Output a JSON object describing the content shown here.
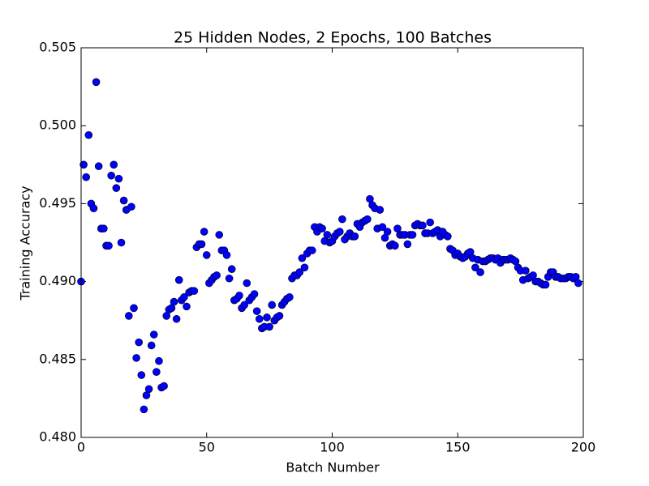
{
  "chart_data": {
    "type": "scatter",
    "title": "25 Hidden Nodes, 2 Epochs, 100 Batches",
    "x_label": "Batch Number",
    "y_label": "Training Accuracy",
    "xlim": [
      0,
      200
    ],
    "ylim": [
      0.48,
      0.505
    ],
    "xticks": [
      0,
      50,
      100,
      150,
      200
    ],
    "yticks": [
      {
        "value": 0.48,
        "label": "0.480"
      },
      {
        "value": 0.485,
        "label": "0.485"
      },
      {
        "value": 0.49,
        "label": "0.490"
      },
      {
        "value": 0.495,
        "label": "0.495"
      },
      {
        "value": 0.5,
        "label": "0.500"
      },
      {
        "value": 0.505,
        "label": "0.505"
      }
    ],
    "grid": false,
    "series": [
      {
        "color": "#0000ff",
        "x": [
          0,
          1,
          2,
          3,
          4,
          5,
          6,
          7,
          8,
          9,
          10,
          11,
          12,
          13,
          14,
          15,
          16,
          17,
          18,
          19,
          20,
          21,
          22,
          23,
          24,
          25,
          26,
          27,
          28,
          29,
          30,
          31,
          32,
          33,
          34,
          35,
          36,
          37,
          38,
          39,
          40,
          41,
          42,
          43,
          44,
          45,
          46,
          47,
          48,
          49,
          50,
          51,
          52,
          53,
          54,
          55,
          56,
          57,
          58,
          59,
          60,
          61,
          62,
          63,
          64,
          65,
          66,
          67,
          68,
          69,
          70,
          71,
          72,
          73,
          74,
          75,
          76,
          77,
          78,
          79,
          80,
          81,
          82,
          83,
          84,
          85,
          86,
          87,
          88,
          89,
          90,
          91,
          92,
          93,
          94,
          95,
          96,
          97,
          98,
          99,
          100,
          101,
          102,
          103,
          104,
          105,
          106,
          107,
          108,
          109,
          110,
          111,
          112,
          113,
          114,
          115,
          116,
          117,
          118,
          119,
          120,
          121,
          122,
          123,
          124,
          125,
          126,
          127,
          128,
          129,
          130,
          131,
          132,
          133,
          134,
          135,
          136,
          137,
          138,
          139,
          140,
          141,
          142,
          143,
          144,
          145,
          146,
          147,
          148,
          149,
          150,
          151,
          152,
          153,
          154,
          155,
          156,
          157,
          158,
          159,
          160,
          161,
          162,
          163,
          164,
          165,
          166,
          167,
          168,
          169,
          170,
          171,
          172,
          173,
          174,
          175,
          176,
          177,
          178,
          179,
          180,
          181,
          182,
          183,
          184,
          185,
          186,
          187,
          188,
          189,
          190,
          191,
          192,
          193,
          194,
          195,
          196,
          197,
          198
        ],
        "values": [
          0.49,
          0.4975,
          0.4967,
          0.4994,
          0.495,
          0.4947,
          0.5028,
          0.4974,
          0.4934,
          0.4934,
          0.4923,
          0.4923,
          0.4968,
          0.4975,
          0.496,
          0.4966,
          0.4925,
          0.4952,
          0.4946,
          0.4878,
          0.4948,
          0.4883,
          0.4851,
          0.4861,
          0.484,
          0.4818,
          0.4827,
          0.4831,
          0.4859,
          0.4866,
          0.4842,
          0.4849,
          0.4832,
          0.4833,
          0.4878,
          0.4882,
          0.4883,
          0.4887,
          0.4876,
          0.4901,
          0.4888,
          0.489,
          0.4884,
          0.4893,
          0.4894,
          0.4894,
          0.4922,
          0.4924,
          0.4924,
          0.4932,
          0.4917,
          0.4899,
          0.4901,
          0.4903,
          0.4904,
          0.493,
          0.492,
          0.492,
          0.4917,
          0.4902,
          0.4908,
          0.4888,
          0.4889,
          0.4891,
          0.4883,
          0.4885,
          0.4899,
          0.4888,
          0.489,
          0.4892,
          0.4881,
          0.4876,
          0.487,
          0.4871,
          0.4877,
          0.4871,
          0.4885,
          0.4875,
          0.4877,
          0.4878,
          0.4885,
          0.4887,
          0.4889,
          0.489,
          0.4902,
          0.4904,
          0.4904,
          0.4906,
          0.4915,
          0.4909,
          0.4918,
          0.492,
          0.492,
          0.4935,
          0.4932,
          0.4935,
          0.4934,
          0.4926,
          0.493,
          0.4925,
          0.4926,
          0.4929,
          0.4931,
          0.4932,
          0.494,
          0.4927,
          0.4929,
          0.4931,
          0.4929,
          0.4929,
          0.4937,
          0.4935,
          0.4938,
          0.4939,
          0.494,
          0.4953,
          0.4949,
          0.4947,
          0.4934,
          0.4946,
          0.4935,
          0.4928,
          0.4932,
          0.4923,
          0.4924,
          0.4923,
          0.4934,
          0.493,
          0.493,
          0.493,
          0.4924,
          0.493,
          0.493,
          0.4936,
          0.4937,
          0.4936,
          0.4936,
          0.4931,
          0.4931,
          0.4938,
          0.4931,
          0.4932,
          0.4933,
          0.4929,
          0.4932,
          0.493,
          0.4929,
          0.4921,
          0.492,
          0.4917,
          0.4918,
          0.4916,
          0.4915,
          0.4916,
          0.4918,
          0.4919,
          0.4915,
          0.4909,
          0.4914,
          0.4906,
          0.4913,
          0.4913,
          0.4914,
          0.4915,
          0.4915,
          0.4914,
          0.4915,
          0.4912,
          0.4914,
          0.4914,
          0.4914,
          0.4915,
          0.4914,
          0.4913,
          0.4909,
          0.4907,
          0.4901,
          0.4907,
          0.4902,
          0.4903,
          0.4904,
          0.49,
          0.49,
          0.4899,
          0.4898,
          0.4898,
          0.4903,
          0.4906,
          0.4906,
          0.4903,
          0.4903,
          0.4902,
          0.4902,
          0.4902,
          0.4903,
          0.4903,
          0.4902,
          0.4903,
          0.4899
        ]
      }
    ]
  }
}
